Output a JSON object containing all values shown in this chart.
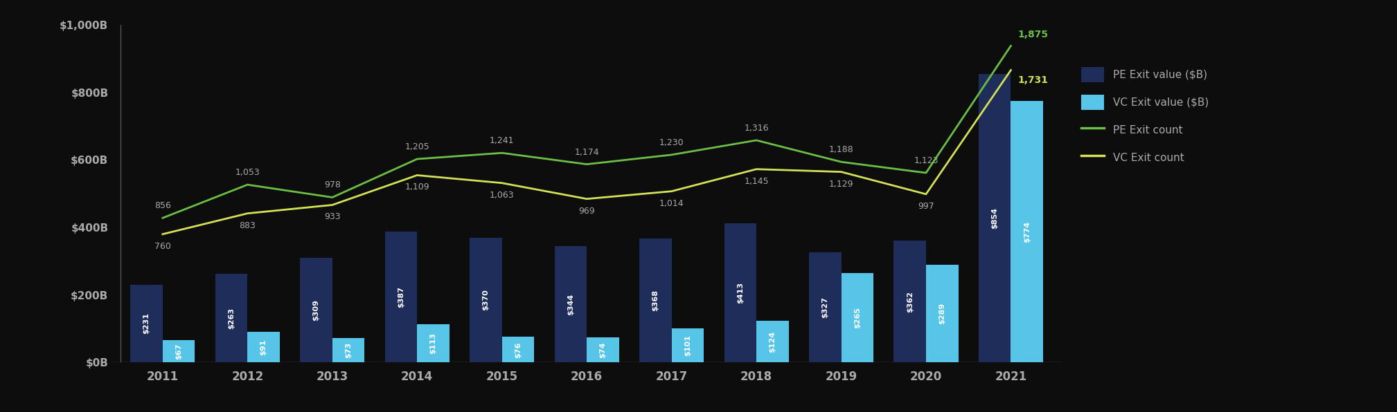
{
  "years": [
    2011,
    2012,
    2013,
    2014,
    2015,
    2016,
    2017,
    2018,
    2019,
    2020,
    2021
  ],
  "pe_exit_value": [
    231,
    263,
    309,
    387,
    370,
    344,
    368,
    413,
    327,
    362,
    854
  ],
  "vc_exit_value": [
    67,
    91,
    73,
    113,
    76,
    74,
    101,
    124,
    265,
    289,
    774
  ],
  "pe_exit_count": [
    856,
    1053,
    978,
    1205,
    1241,
    1174,
    1230,
    1316,
    1188,
    1123,
    1875
  ],
  "vc_exit_count": [
    760,
    883,
    933,
    1109,
    1063,
    969,
    1014,
    1145,
    1129,
    997,
    1731
  ],
  "pe_bar_color": "#1f2d5a",
  "vc_bar_color": "#56c5e8",
  "pe_line_color": "#6abf45",
  "vc_line_color": "#d4e157",
  "background_color": "#0d0d0d",
  "text_color": "#aaaaaa",
  "bar_label_color": "#ffffff",
  "count_label_color": "#aaaaaa",
  "yticks_bar": [
    0,
    200,
    400,
    600,
    800,
    1000
  ],
  "ytick_labels_bar": [
    "$0B",
    "$200B",
    "$400B",
    "$600B",
    "$800B",
    "$1,000B"
  ],
  "bar_width": 0.38,
  "legend_labels": [
    "PE Exit value ($B)",
    "VC Exit value ($B)",
    "PE Exit count",
    "VC Exit count"
  ],
  "count_scale_max": 2000,
  "bar_ylim_max": 1000
}
